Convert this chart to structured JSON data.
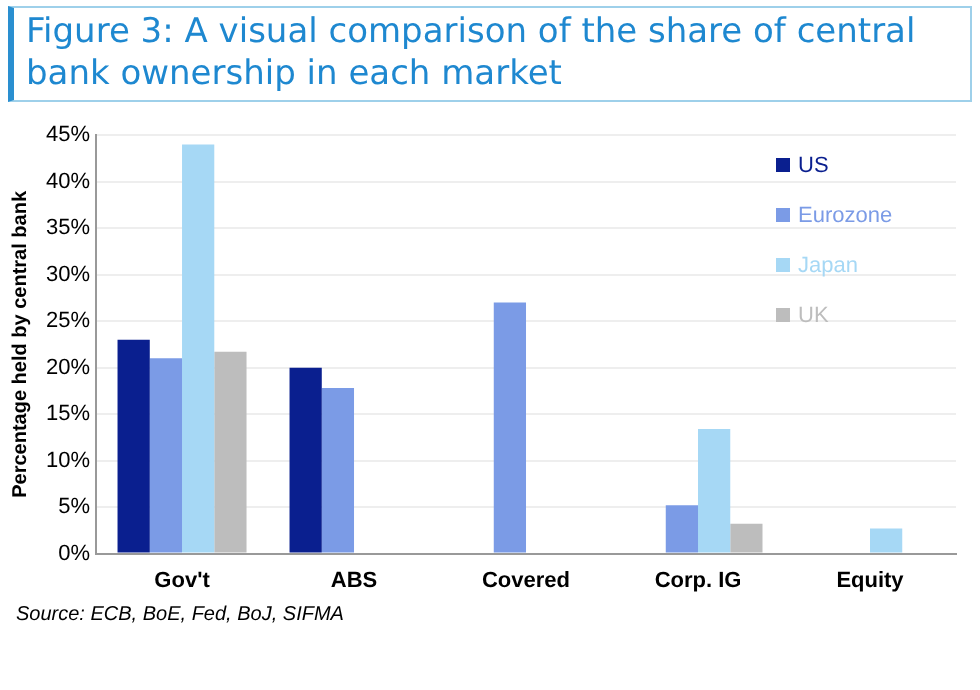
{
  "chart_data": {
    "type": "bar",
    "title": "Figure 3: A visual comparison of the share of central bank ownership in each market",
    "ylabel": "Percentage held by central bank",
    "categories": [
      "Gov't",
      "ABS",
      "Covered",
      "Corp. IG",
      "Equity"
    ],
    "series": [
      {
        "name": "US",
        "color": "#0a1f8f",
        "values": [
          23,
          20,
          null,
          null,
          null
        ]
      },
      {
        "name": "Eurozone",
        "color": "#7b9be6",
        "values": [
          21,
          17.8,
          27,
          5.2,
          null
        ]
      },
      {
        "name": "Japan",
        "color": "#a6d8f5",
        "values": [
          44,
          null,
          null,
          13.4,
          2.7
        ]
      },
      {
        "name": "UK",
        "color": "#bdbdbd",
        "values": [
          21.7,
          null,
          null,
          3.2,
          null
        ]
      }
    ],
    "ylim": [
      0,
      45
    ],
    "yticks": [
      {
        "value": 0,
        "label": "0%"
      },
      {
        "value": 5,
        "label": "5%"
      },
      {
        "value": 10,
        "label": "10%"
      },
      {
        "value": 15,
        "label": "15%"
      },
      {
        "value": 20,
        "label": "20%"
      },
      {
        "value": 25,
        "label": "25%"
      },
      {
        "value": 30,
        "label": "30%"
      },
      {
        "value": 35,
        "label": "35%"
      },
      {
        "value": 40,
        "label": "40%"
      },
      {
        "value": 45,
        "label": "45%"
      }
    ],
    "grid": "y",
    "legend": "top right",
    "annotations": [
      "Source: ECB, BoE, Fed, BoJ, SIFMA"
    ]
  }
}
